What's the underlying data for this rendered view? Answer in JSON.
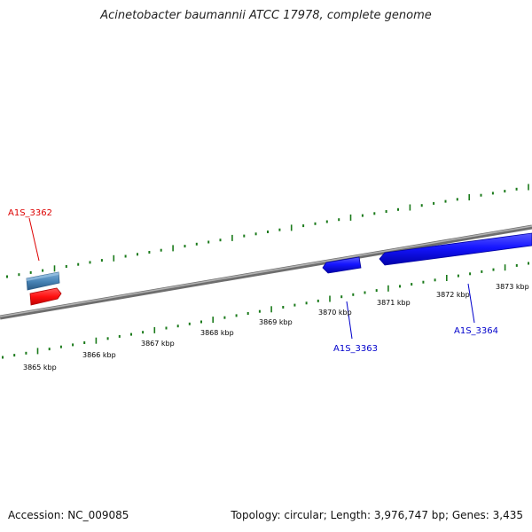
{
  "title": "Acinetobacter baumannii ATCC 17978, complete genome",
  "footer": {
    "accession": "Accession: NC_009085",
    "topology": "Topology: circular; Length: 3,976,747 bp; Genes: 3,435"
  },
  "scale_labels": [
    "3865 kbp",
    "3866 kbp",
    "3867 kbp",
    "3868 kbp",
    "3869 kbp",
    "3870 kbp",
    "3871 kbp",
    "3872 kbp",
    "3873 kbp"
  ],
  "genes": [
    {
      "id": "A1S_3362",
      "color": "#dd0000"
    },
    {
      "id": "A1S_3363",
      "color": "#0000cc"
    },
    {
      "id": "A1S_3364",
      "color": "#0000cc"
    }
  ],
  "colors": {
    "backbone": "#888888",
    "tick": "#1a7a1a",
    "forward_feature": "#4682b4",
    "red_feature": "#ff0000",
    "blue_feature": "#0000ee"
  }
}
